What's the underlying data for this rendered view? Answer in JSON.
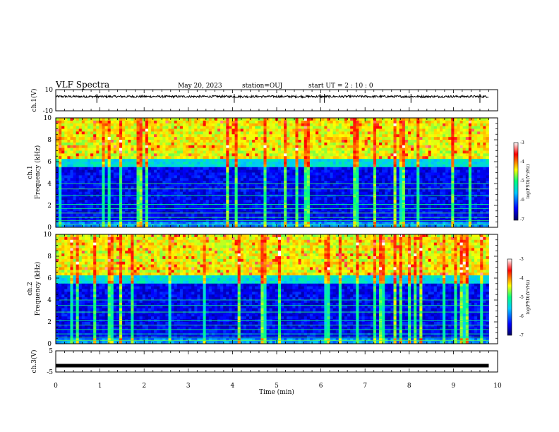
{
  "header": {
    "title": "VLF Spectra",
    "date": "May 20, 2023",
    "station": "station=OUJ",
    "start": "start  UT =  2 : 10 : 0"
  },
  "chart_data": [
    {
      "type": "line",
      "name": "waveform-ch1",
      "ylabel": "ch.1(V)",
      "ylim": [
        -10,
        10
      ],
      "yticks": [
        "10",
        "-10"
      ],
      "xlim": [
        0,
        10
      ],
      "baseline_v": 3.5,
      "noise_v": 1.0
    },
    {
      "type": "heatmap",
      "name": "spectrogram-ch1",
      "ylabel_top": "ch.1",
      "ylabel": "Frequency (kHz)",
      "ylim": [
        0,
        10
      ],
      "yticks": [
        "0",
        "2",
        "4",
        "6",
        "8",
        "10"
      ],
      "xlim": [
        0,
        10
      ],
      "data_end_min": 9.8,
      "colorbar": {
        "label": "log(PSD)(V²/Hz)",
        "range": [
          -7,
          -3
        ],
        "ticks": [
          "-3",
          "-4",
          "-5",
          "-6",
          "-7"
        ]
      }
    },
    {
      "type": "heatmap",
      "name": "spectrogram-ch2",
      "ylabel_top": "ch.2",
      "ylabel": "Frequency (kHz)",
      "ylim": [
        0,
        10
      ],
      "yticks": [
        "0",
        "2",
        "4",
        "6",
        "8",
        "10"
      ],
      "xlim": [
        0,
        10
      ],
      "data_end_min": 9.8,
      "colorbar": {
        "label": "log(PSD)(V²/Hz)",
        "range": [
          -7,
          -3
        ],
        "ticks": [
          "-3",
          "-4",
          "-5",
          "-6",
          "-7"
        ]
      }
    },
    {
      "type": "line",
      "name": "waveform-ch3",
      "ylabel": "ch.3(V)",
      "ylim": [
        -5,
        5
      ],
      "yticks": [
        "5",
        "-5"
      ],
      "xlim": [
        0,
        10
      ],
      "baseline_v": -2.0,
      "noise_v": 0.0
    }
  ],
  "xaxis": {
    "label": "Time (min)",
    "ticks": [
      "0",
      "1",
      "2",
      "3",
      "4",
      "5",
      "6",
      "7",
      "8",
      "9",
      "10"
    ]
  },
  "colors": {
    "colormap": [
      "#000060",
      "#0000ff",
      "#00c8ff",
      "#00ff80",
      "#ffff00",
      "#ff0000",
      "#ffffff"
    ]
  }
}
